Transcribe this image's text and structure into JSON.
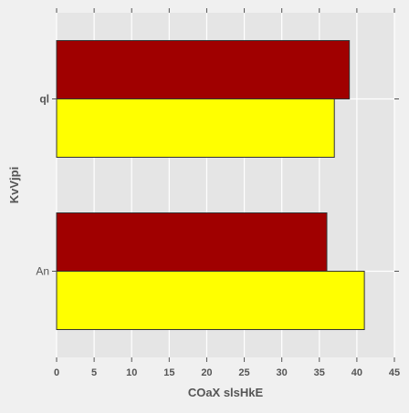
{
  "chart_data": {
    "type": "bar",
    "orientation": "horizontal",
    "categories": [
      "ql",
      "An"
    ],
    "series": [
      {
        "values": [
          39,
          36
        ],
        "color": "#a00000"
      },
      {
        "values": [
          37,
          41
        ],
        "color": "#ffff00"
      }
    ],
    "xlabel": "COaX slsHkE",
    "ylabel": "KvVjpi",
    "xlim": [
      0,
      45
    ],
    "xticks": [
      0,
      5,
      10,
      15,
      20,
      25,
      30,
      35,
      40,
      45
    ],
    "grid": true,
    "plot_background": "#e5e5e5",
    "figure_background": "#f0f0f0"
  }
}
